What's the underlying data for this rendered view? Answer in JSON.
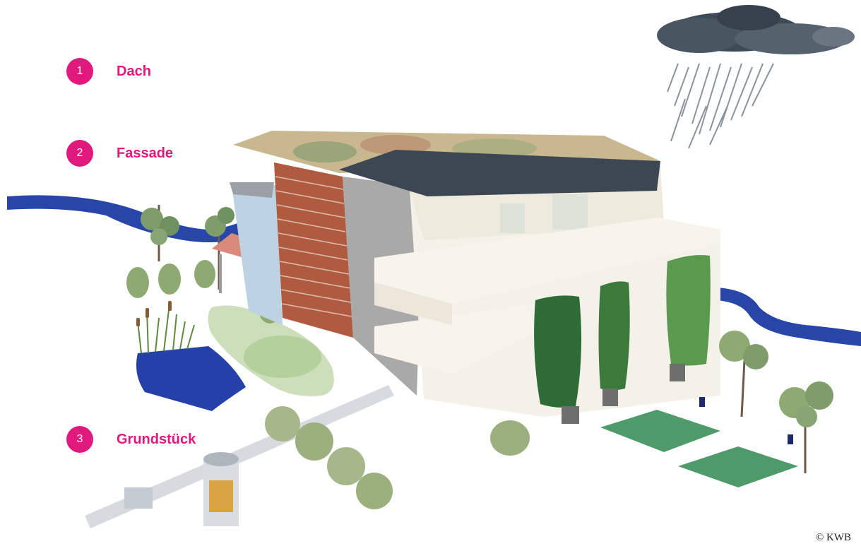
{
  "legend": {
    "items": [
      {
        "number": "1",
        "label": "Dach"
      },
      {
        "number": "2",
        "label": "Fassade"
      },
      {
        "number": "3",
        "label": "Grundstück"
      }
    ]
  },
  "credit": "© KWB",
  "colors": {
    "accent": "#e0197d",
    "water": "#2746a8",
    "brick": "#b05a40",
    "wall": "#f4f1e8",
    "greenery": "#3f7f3c"
  }
}
